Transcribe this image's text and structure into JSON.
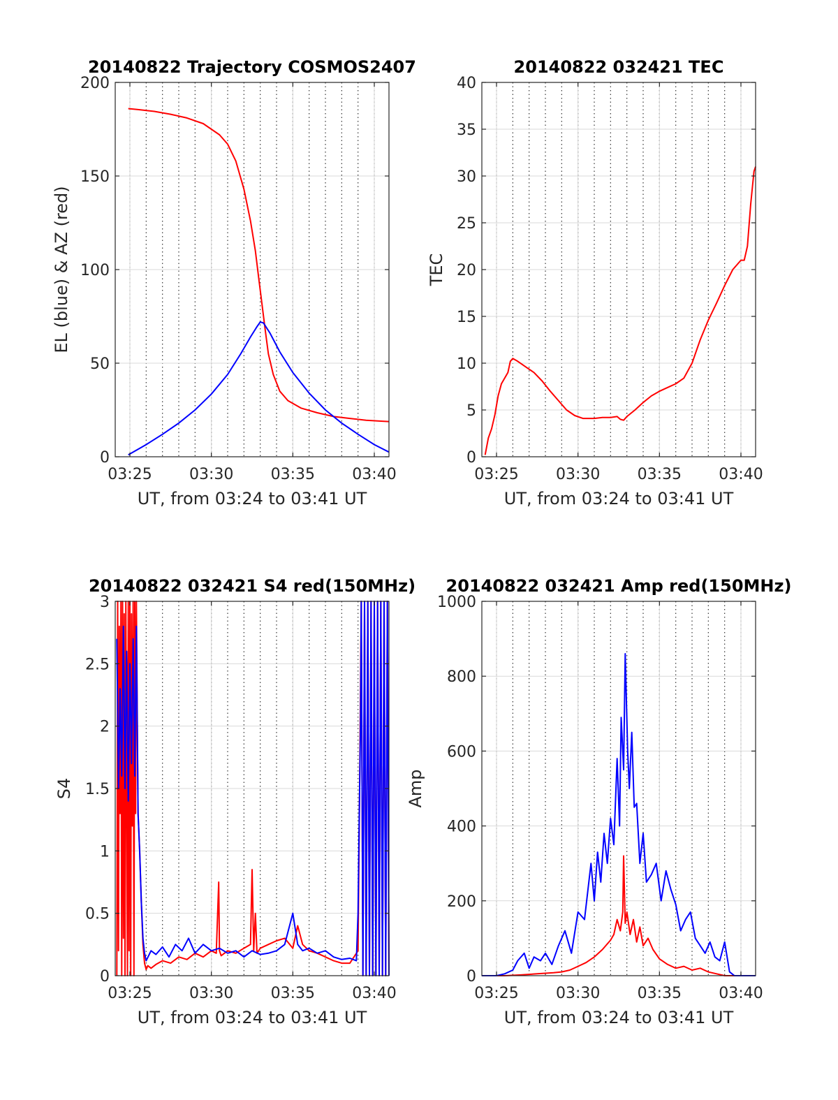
{
  "chart_data": [
    {
      "type": "line",
      "title": "20140822 Trajectory COSMOS2407",
      "xlabel": "UT, from 03:24 to 03:41 UT",
      "ylabel": "EL (blue) & AZ (red)",
      "xlim": [
        24.1,
        40.9
      ],
      "ylim": [
        0,
        200
      ],
      "x_ticks": [
        25,
        30,
        35,
        40
      ],
      "x_tick_labels": [
        "03:25",
        "03:30",
        "03:35",
        "03:40"
      ],
      "y_ticks": [
        0,
        50,
        100,
        150,
        200
      ],
      "y_tick_labels": [
        "0",
        "50",
        "100",
        "150",
        "200"
      ],
      "grid": true,
      "series": [
        {
          "color": "#ff0000",
          "x": [
            24.9,
            25.5,
            26.5,
            27.5,
            28.5,
            29.5,
            30.5,
            31.0,
            31.5,
            32.0,
            32.4,
            32.7,
            32.9,
            33.1,
            33.3,
            33.5,
            33.8,
            34.2,
            34.7,
            35.5,
            36.5,
            37.5,
            38.5,
            39.5,
            40.5,
            40.9
          ],
          "y": [
            186,
            185.5,
            184.5,
            183,
            181,
            178,
            172,
            167,
            158,
            143,
            126,
            110,
            96,
            82,
            68,
            55,
            44,
            35,
            30,
            26,
            23.5,
            21.5,
            20.5,
            19.5,
            19,
            18.8
          ]
        },
        {
          "color": "#0000ff",
          "x": [
            24.9,
            26,
            27,
            28,
            29,
            30,
            31,
            31.8,
            32.4,
            32.8,
            33.0,
            33.2,
            33.6,
            34.2,
            35,
            36,
            37,
            38,
            39,
            40,
            40.9
          ],
          "y": [
            1,
            6.5,
            12,
            18,
            25,
            33.5,
            44,
            55,
            64,
            69.5,
            72,
            71.5,
            66,
            56,
            45,
            34,
            25,
            18,
            12,
            6.5,
            2.5
          ]
        }
      ]
    },
    {
      "type": "line",
      "title": "20140822 032421 TEC",
      "xlabel": "UT, from 03:24 to 03:41 UT",
      "ylabel": "TEC",
      "xlim": [
        24.1,
        40.9
      ],
      "ylim": [
        0,
        40
      ],
      "x_ticks": [
        25,
        30,
        35,
        40
      ],
      "x_tick_labels": [
        "03:25",
        "03:30",
        "03:35",
        "03:40"
      ],
      "y_ticks": [
        0,
        5,
        10,
        15,
        20,
        25,
        30,
        35,
        40
      ],
      "y_tick_labels": [
        "0",
        "5",
        "10",
        "15",
        "20",
        "25",
        "30",
        "35",
        "40"
      ],
      "grid": true,
      "series": [
        {
          "color": "#ff0000",
          "x": [
            24.3,
            24.5,
            24.7,
            24.9,
            25.1,
            25.3,
            25.5,
            25.7,
            25.85,
            26.0,
            26.3,
            26.8,
            27.3,
            27.8,
            28.3,
            28.8,
            29.3,
            29.8,
            30.3,
            31.0,
            31.5,
            32.0,
            32.4,
            32.6,
            32.8,
            33.0,
            33.5,
            34.0,
            34.5,
            35.0,
            35.5,
            36.0,
            36.5,
            37.0,
            37.5,
            38.0,
            38.5,
            39.0,
            39.5,
            40.0,
            40.2,
            40.4,
            40.6,
            40.8,
            40.9
          ],
          "y": [
            0.2,
            2.0,
            3.0,
            4.5,
            6.5,
            7.8,
            8.4,
            9.0,
            10.2,
            10.5,
            10.2,
            9.6,
            9.0,
            8.1,
            7.0,
            6.0,
            5.0,
            4.4,
            4.1,
            4.1,
            4.2,
            4.2,
            4.3,
            4.0,
            3.9,
            4.3,
            5.0,
            5.8,
            6.5,
            7.0,
            7.4,
            7.8,
            8.4,
            10.0,
            12.5,
            14.6,
            16.4,
            18.3,
            20.0,
            21.0,
            21.0,
            22.5,
            27.0,
            30.5,
            31.0
          ]
        }
      ]
    },
    {
      "type": "line",
      "title": "20140822 032421 S4 red(150MHz)",
      "xlabel": "UT, from 03:24 to 03:41 UT",
      "ylabel": "S4",
      "xlim": [
        24.1,
        40.9
      ],
      "ylim": [
        0,
        3
      ],
      "x_ticks": [
        25,
        30,
        35,
        40
      ],
      "x_tick_labels": [
        "03:25",
        "03:30",
        "03:35",
        "03:40"
      ],
      "y_ticks": [
        0,
        0.5,
        1,
        1.5,
        2,
        2.5,
        3
      ],
      "y_tick_labels": [
        "0",
        "0.5",
        "1",
        "1.5",
        "2",
        "2.5",
        "3"
      ],
      "grid": true,
      "series": [
        {
          "color": "#ff0000",
          "x": [
            24.2,
            24.25,
            24.3,
            24.35,
            24.4,
            24.45,
            24.5,
            24.55,
            24.6,
            24.65,
            24.7,
            24.75,
            24.8,
            24.85,
            24.9,
            24.95,
            25.0,
            25.05,
            25.1,
            25.15,
            25.2,
            25.25,
            25.3,
            25.35,
            25.4,
            25.5,
            25.6,
            25.7,
            25.8,
            25.9,
            26.0,
            26.1,
            26.3,
            26.6,
            27.0,
            27.5,
            28.0,
            28.5,
            29.0,
            29.5,
            30.0,
            30.3,
            30.45,
            30.5,
            30.6,
            31.0,
            31.5,
            32.0,
            32.4,
            32.5,
            32.6,
            32.7,
            32.8,
            33.0,
            33.5,
            34.0,
            34.5,
            35.0,
            35.3,
            35.6,
            36.0,
            36.5,
            37.0,
            37.5,
            38.0,
            38.5,
            39.0,
            39.1,
            39.2,
            39.3,
            39.4,
            39.5,
            39.6,
            39.7,
            39.8,
            39.9,
            40.0,
            40.1,
            40.2,
            40.3,
            40.4,
            40.5,
            40.6,
            40.7,
            40.8,
            40.9
          ],
          "y": [
            0.0,
            3.0,
            0.2,
            2.8,
            1.3,
            3.0,
            0.0,
            3.0,
            0.3,
            2.9,
            0.0,
            3.0,
            1.4,
            0.0,
            3.0,
            0.2,
            3.0,
            0.0,
            2.9,
            1.2,
            3.0,
            0.0,
            3.0,
            1.3,
            3.0,
            1.3,
            1.0,
            0.6,
            0.25,
            0.1,
            0.05,
            0.08,
            0.06,
            0.09,
            0.12,
            0.1,
            0.15,
            0.13,
            0.18,
            0.15,
            0.2,
            0.18,
            0.75,
            0.2,
            0.16,
            0.2,
            0.18,
            0.22,
            0.25,
            0.85,
            0.2,
            0.5,
            0.18,
            0.22,
            0.25,
            0.28,
            0.3,
            0.22,
            0.4,
            0.25,
            0.2,
            0.18,
            0.15,
            0.12,
            0.1,
            0.1,
            0.2,
            1.5,
            3.0,
            0.0,
            3.0,
            0.0,
            3.0,
            0.0,
            3.0,
            0.0,
            3.0,
            0.0,
            3.0,
            0.0,
            3.0,
            0.0,
            3.0,
            0.0,
            3.0,
            0.0
          ]
        },
        {
          "color": "#0000ff",
          "x": [
            24.2,
            24.3,
            24.4,
            24.5,
            24.6,
            24.7,
            24.8,
            24.9,
            25.0,
            25.1,
            25.2,
            25.3,
            25.4,
            25.5,
            25.6,
            25.7,
            25.8,
            25.9,
            26.0,
            26.3,
            26.6,
            27.0,
            27.4,
            27.8,
            28.2,
            28.6,
            29.0,
            29.5,
            30.0,
            30.5,
            31.0,
            31.5,
            32.0,
            32.5,
            33.0,
            33.5,
            34.0,
            34.5,
            35.0,
            35.3,
            35.6,
            36.0,
            36.5,
            37.0,
            37.5,
            38.0,
            38.5,
            38.9,
            39.0,
            39.05,
            39.1,
            39.15,
            39.2,
            39.3,
            39.4,
            39.5,
            39.6,
            39.7,
            39.8,
            39.9,
            40.0,
            40.1,
            40.2,
            40.3,
            40.4,
            40.5,
            40.6,
            40.7,
            40.8,
            40.9
          ],
          "y": [
            2.7,
            1.5,
            2.3,
            1.6,
            2.8,
            1.5,
            2.6,
            1.4,
            2.5,
            1.7,
            2.7,
            1.6,
            2.8,
            1.3,
            1.0,
            0.6,
            0.3,
            0.18,
            0.12,
            0.2,
            0.17,
            0.23,
            0.15,
            0.25,
            0.2,
            0.3,
            0.18,
            0.25,
            0.2,
            0.22,
            0.18,
            0.2,
            0.15,
            0.2,
            0.17,
            0.18,
            0.2,
            0.25,
            0.5,
            0.25,
            0.2,
            0.22,
            0.18,
            0.2,
            0.15,
            0.13,
            0.14,
            0.12,
            0.5,
            1.0,
            1.5,
            2.0,
            3.0,
            0.0,
            3.0,
            0.0,
            3.0,
            0.0,
            3.0,
            0.0,
            3.0,
            0.0,
            3.0,
            0.0,
            3.0,
            0.0,
            3.0,
            0.0,
            3.0,
            0.0
          ]
        }
      ]
    },
    {
      "type": "line",
      "title": "20140822 032421 Amp red(150MHz)",
      "xlabel": "UT, from 03:24 to 03:41 UT",
      "ylabel": "Amp",
      "xlim": [
        24.1,
        40.9
      ],
      "ylim": [
        0,
        1000
      ],
      "x_ticks": [
        25,
        30,
        35,
        40
      ],
      "x_tick_labels": [
        "03:25",
        "03:30",
        "03:35",
        "03:40"
      ],
      "y_ticks": [
        0,
        200,
        400,
        600,
        800,
        1000
      ],
      "y_tick_labels": [
        "0",
        "200",
        "400",
        "600",
        "800",
        "1000"
      ],
      "grid": true,
      "series": [
        {
          "color": "#ff0000",
          "x": [
            24.1,
            25.5,
            26.5,
            27.5,
            28.5,
            29.0,
            29.5,
            30.0,
            30.5,
            31.0,
            31.5,
            32.0,
            32.2,
            32.4,
            32.6,
            32.75,
            32.8,
            32.9,
            33.0,
            33.2,
            33.4,
            33.6,
            33.8,
            34.0,
            34.3,
            34.6,
            35.0,
            35.5,
            36.0,
            36.5,
            37.0,
            37.5,
            38.0,
            38.5,
            39.0,
            39.5,
            40.0,
            40.9
          ],
          "y": [
            0,
            0,
            2,
            5,
            8,
            10,
            15,
            25,
            35,
            50,
            70,
            95,
            110,
            150,
            120,
            170,
            320,
            140,
            170,
            110,
            150,
            90,
            130,
            80,
            100,
            70,
            45,
            30,
            20,
            25,
            15,
            20,
            10,
            5,
            0,
            0,
            0,
            0
          ]
        },
        {
          "color": "#0000ff",
          "x": [
            24.1,
            25.0,
            25.5,
            26.0,
            26.3,
            26.7,
            27.0,
            27.3,
            27.7,
            28.0,
            28.4,
            28.8,
            29.2,
            29.6,
            30.0,
            30.4,
            30.8,
            31.0,
            31.2,
            31.4,
            31.6,
            31.8,
            32.0,
            32.2,
            32.4,
            32.55,
            32.65,
            32.8,
            32.9,
            33.05,
            33.15,
            33.3,
            33.45,
            33.6,
            33.8,
            34.0,
            34.2,
            34.5,
            34.8,
            35.1,
            35.4,
            35.7,
            36.0,
            36.3,
            36.6,
            36.9,
            37.2,
            37.5,
            37.8,
            38.1,
            38.4,
            38.7,
            39.0,
            39.3,
            39.6,
            40.0,
            40.9
          ],
          "y": [
            0,
            0,
            5,
            15,
            40,
            60,
            20,
            50,
            40,
            60,
            30,
            80,
            120,
            60,
            170,
            150,
            300,
            200,
            330,
            250,
            380,
            300,
            420,
            350,
            580,
            400,
            690,
            550,
            860,
            600,
            500,
            650,
            450,
            460,
            300,
            380,
            250,
            270,
            300,
            200,
            280,
            230,
            190,
            120,
            150,
            170,
            100,
            80,
            60,
            90,
            50,
            40,
            90,
            10,
            0,
            0,
            0
          ]
        }
      ]
    }
  ]
}
